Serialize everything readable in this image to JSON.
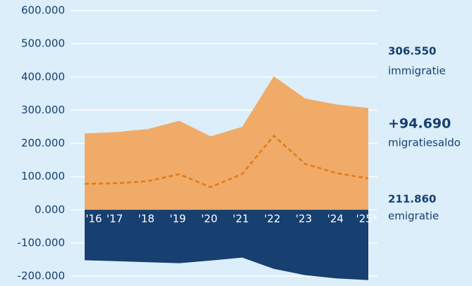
{
  "chart_data": {
    "type": "area",
    "categories": [
      "'16",
      "'17",
      "'18",
      "'19",
      "'20",
      "'21",
      "'22",
      "'23",
      "'24",
      "'25*"
    ],
    "series": [
      {
        "name": "immigratie",
        "color": "#f0ab68",
        "values": [
          230000,
          234000,
          243000,
          268000,
          221000,
          250000,
          402000,
          335000,
          317000,
          306550
        ]
      },
      {
        "name": "emigratie",
        "color": "#173f70",
        "values": [
          -152000,
          -155000,
          -158000,
          -161000,
          -153000,
          -144000,
          -178000,
          -197000,
          -207000,
          -211860
        ]
      },
      {
        "name": "migratiesaldo",
        "color": "#e07a1c",
        "style": "dashed",
        "values": [
          78000,
          80000,
          86000,
          107000,
          68000,
          108000,
          223000,
          138000,
          110000,
          94690
        ]
      }
    ],
    "annotations": [
      {
        "label": "306.550",
        "text": "immigratie"
      },
      {
        "label": "+94.690",
        "text": "migratiesaldo"
      },
      {
        "label": "211.860",
        "text": "emigratie"
      }
    ],
    "ylim": [
      -200000,
      600000
    ],
    "yticks": [
      {
        "value": 600000,
        "label": "600.000"
      },
      {
        "value": 500000,
        "label": "500.000"
      },
      {
        "value": 400000,
        "label": "400.000"
      },
      {
        "value": 300000,
        "label": "300.000"
      },
      {
        "value": 200000,
        "label": "200.000"
      },
      {
        "value": 100000,
        "label": "100.000"
      },
      {
        "value": 0,
        "label": "0.000"
      },
      {
        "value": -100000,
        "label": "-100.000"
      },
      {
        "value": -200000,
        "label": "-200.000"
      }
    ],
    "grid": true
  }
}
